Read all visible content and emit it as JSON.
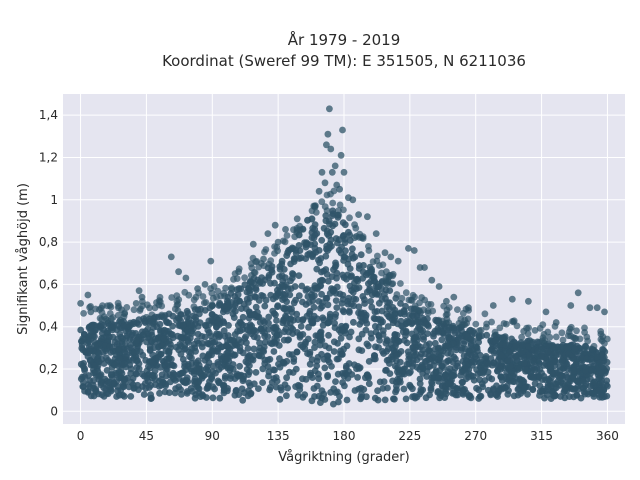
{
  "chart_data": {
    "type": "scatter",
    "title_line1": "År 1979 - 2019",
    "title_line2": "Koordinat (Sweref 99 TM): E 351505, N 6211036",
    "xlabel": "Vågriktning (grader)",
    "ylabel": "Signifikant våghöjd (m)",
    "xlim": [
      -12,
      372
    ],
    "ylim": [
      -0.06,
      1.5
    ],
    "x_ticks": [
      0,
      45,
      90,
      135,
      180,
      225,
      270,
      315,
      360
    ],
    "x_tick_labels": [
      "0",
      "45",
      "90",
      "135",
      "180",
      "225",
      "270",
      "315",
      "360"
    ],
    "y_ticks": [
      0,
      0.2,
      0.4,
      0.6,
      0.8,
      1.0,
      1.2,
      1.4
    ],
    "y_tick_labels": [
      "0",
      "0,2",
      "0,4",
      "0,6",
      "0,8",
      "1",
      "1,2",
      "1,4"
    ],
    "grid": true,
    "marker_color": "#2f5468",
    "background_color": "#e5e5f0",
    "envelope": {
      "x": [
        0,
        20,
        45,
        60,
        90,
        110,
        135,
        150,
        165,
        172,
        180,
        195,
        210,
        225,
        240,
        270,
        300,
        330,
        360
      ],
      "y_max": [
        0.4,
        0.42,
        0.44,
        0.46,
        0.5,
        0.6,
        0.72,
        0.82,
        0.92,
        0.96,
        0.9,
        0.72,
        0.58,
        0.5,
        0.44,
        0.38,
        0.34,
        0.32,
        0.3
      ],
      "y_min": [
        0.07,
        0.07,
        0.06,
        0.06,
        0.05,
        0.05,
        0.04,
        0.03,
        0.02,
        0.02,
        0.02,
        0.03,
        0.04,
        0.05,
        0.05,
        0.06,
        0.06,
        0.06,
        0.06
      ]
    },
    "outliers": [
      {
        "x": 0,
        "y": 0.51
      },
      {
        "x": 5,
        "y": 0.55
      },
      {
        "x": 7,
        "y": 0.47
      },
      {
        "x": 20,
        "y": 0.5
      },
      {
        "x": 28,
        "y": 0.48
      },
      {
        "x": 38,
        "y": 0.51
      },
      {
        "x": 40,
        "y": 0.57
      },
      {
        "x": 42,
        "y": 0.54
      },
      {
        "x": 62,
        "y": 0.73
      },
      {
        "x": 67,
        "y": 0.66
      },
      {
        "x": 72,
        "y": 0.63
      },
      {
        "x": 80,
        "y": 0.58
      },
      {
        "x": 85,
        "y": 0.6
      },
      {
        "x": 89,
        "y": 0.71
      },
      {
        "x": 95,
        "y": 0.62
      },
      {
        "x": 108,
        "y": 0.66
      },
      {
        "x": 118,
        "y": 0.79
      },
      {
        "x": 125,
        "y": 0.72
      },
      {
        "x": 128,
        "y": 0.84
      },
      {
        "x": 133,
        "y": 0.88
      },
      {
        "x": 135,
        "y": 0.8
      },
      {
        "x": 140,
        "y": 0.86
      },
      {
        "x": 148,
        "y": 0.91
      },
      {
        "x": 152,
        "y": 0.86
      },
      {
        "x": 160,
        "y": 0.97
      },
      {
        "x": 163,
        "y": 1.04
      },
      {
        "x": 165,
        "y": 1.13
      },
      {
        "x": 167,
        "y": 1.08
      },
      {
        "x": 168,
        "y": 1.26
      },
      {
        "x": 169,
        "y": 1.31
      },
      {
        "x": 170,
        "y": 1.43
      },
      {
        "x": 171,
        "y": 1.24
      },
      {
        "x": 172,
        "y": 1.13
      },
      {
        "x": 174,
        "y": 1.16
      },
      {
        "x": 175,
        "y": 1.07
      },
      {
        "x": 177,
        "y": 1.05
      },
      {
        "x": 178,
        "y": 1.21
      },
      {
        "x": 179,
        "y": 1.33
      },
      {
        "x": 180,
        "y": 1.13
      },
      {
        "x": 183,
        "y": 1.01
      },
      {
        "x": 186,
        "y": 1.0
      },
      {
        "x": 190,
        "y": 0.93
      },
      {
        "x": 196,
        "y": 0.92
      },
      {
        "x": 202,
        "y": 0.84
      },
      {
        "x": 208,
        "y": 0.75
      },
      {
        "x": 212,
        "y": 0.73
      },
      {
        "x": 217,
        "y": 0.71
      },
      {
        "x": 224,
        "y": 0.77
      },
      {
        "x": 228,
        "y": 0.76
      },
      {
        "x": 232,
        "y": 0.68
      },
      {
        "x": 235,
        "y": 0.68
      },
      {
        "x": 240,
        "y": 0.62
      },
      {
        "x": 245,
        "y": 0.59
      },
      {
        "x": 250,
        "y": 0.52
      },
      {
        "x": 255,
        "y": 0.54
      },
      {
        "x": 265,
        "y": 0.49
      },
      {
        "x": 282,
        "y": 0.5
      },
      {
        "x": 295,
        "y": 0.53
      },
      {
        "x": 306,
        "y": 0.52
      },
      {
        "x": 318,
        "y": 0.47
      },
      {
        "x": 325,
        "y": 0.42
      },
      {
        "x": 335,
        "y": 0.5
      },
      {
        "x": 340,
        "y": 0.56
      },
      {
        "x": 348,
        "y": 0.49
      },
      {
        "x": 353,
        "y": 0.49
      },
      {
        "x": 358,
        "y": 0.47
      }
    ]
  }
}
